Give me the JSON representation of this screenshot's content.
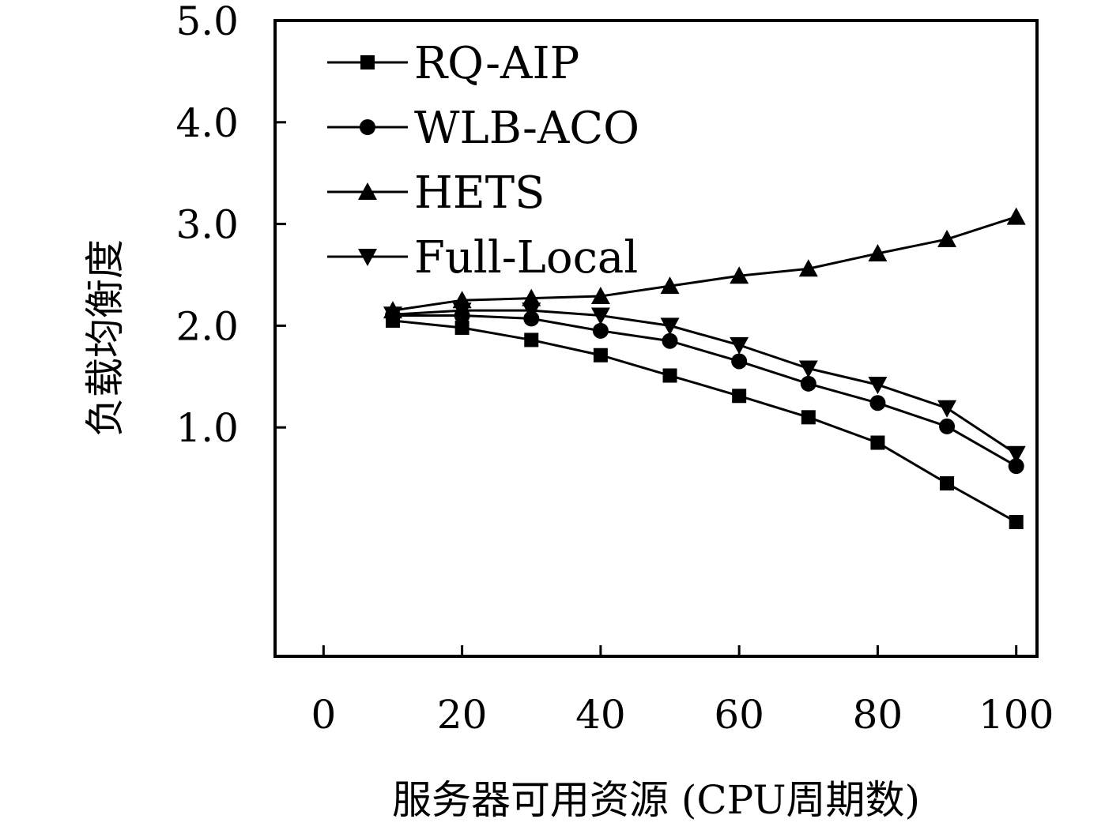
{
  "chart_data": {
    "type": "line",
    "title": "",
    "xlabel": "服务器可用资源 (CPU周期数)",
    "ylabel": "负载均衡度",
    "xlim": [
      -7,
      103
    ],
    "ylim": [
      -1.25,
      5.0
    ],
    "x_ticks": [
      0,
      20,
      40,
      60,
      80,
      100
    ],
    "x_tick_labels": [
      "0",
      "20",
      "40",
      "60",
      "80",
      "100"
    ],
    "y_ticks": [
      1.0,
      2.0,
      3.0,
      4.0,
      5.0
    ],
    "y_tick_labels": [
      "1.0",
      "2.0",
      "3.0",
      "4.0",
      "5.0"
    ],
    "grid": false,
    "legend_position": "top-left",
    "x": [
      10,
      20,
      30,
      40,
      50,
      60,
      70,
      80,
      90,
      100
    ],
    "series": [
      {
        "name": "RQ-AIP",
        "marker": "square",
        "color": "#000000",
        "values": [
          2.05,
          1.98,
          1.86,
          1.71,
          1.51,
          1.31,
          1.1,
          0.85,
          0.45,
          0.07
        ]
      },
      {
        "name": "WLB-ACO",
        "marker": "circle",
        "color": "#000000",
        "values": [
          2.1,
          2.1,
          2.07,
          1.95,
          1.85,
          1.65,
          1.43,
          1.24,
          1.01,
          0.62
        ]
      },
      {
        "name": "HETS",
        "marker": "triangle-up",
        "color": "#000000",
        "values": [
          2.15,
          2.25,
          2.27,
          2.29,
          2.39,
          2.49,
          2.56,
          2.71,
          2.85,
          3.07
        ]
      },
      {
        "name": "Full-Local",
        "marker": "triangle-down",
        "color": "#000000",
        "values": [
          2.11,
          2.15,
          2.15,
          2.1,
          2.0,
          1.81,
          1.58,
          1.42,
          1.19,
          0.74
        ]
      }
    ]
  }
}
